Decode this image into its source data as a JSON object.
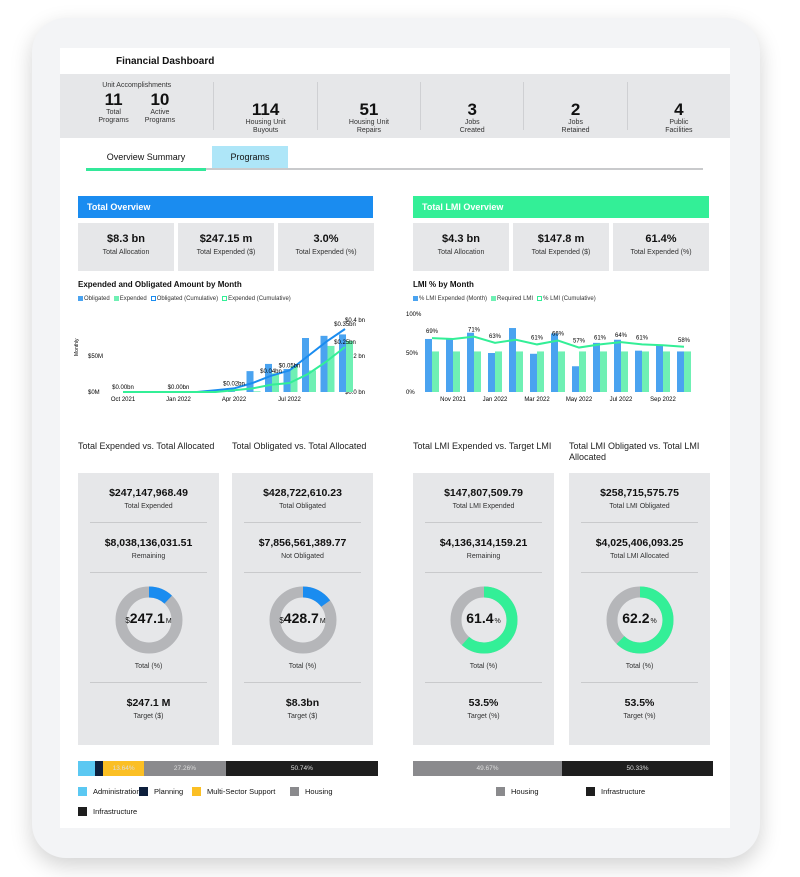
{
  "title": "Financial Dashboard",
  "kpis": {
    "group_label": "Unit Accomplishments",
    "items": [
      {
        "value": "11",
        "label1": "Total",
        "label2": "Programs"
      },
      {
        "value": "10",
        "label1": "Active",
        "label2": "Programs"
      },
      {
        "value": "114",
        "label1": "Housing Unit",
        "label2": "Buyouts"
      },
      {
        "value": "51",
        "label1": "Housing Unit",
        "label2": "Repairs"
      },
      {
        "value": "3",
        "label1": "Jobs",
        "label2": "Created"
      },
      {
        "value": "2",
        "label1": "Jobs",
        "label2": "Retained"
      },
      {
        "value": "4",
        "label1": "Public",
        "label2": "Facilities"
      }
    ]
  },
  "tabs": [
    {
      "label": "Overview Summary",
      "active": true
    },
    {
      "label": "Programs",
      "active": false
    }
  ],
  "colors": {
    "blue": "#1a8cf0",
    "green": "#33ef97",
    "bar_blue": "#4aa3f0",
    "bar_green": "#6ff0b4",
    "panel": "#e6e7e9"
  },
  "left": {
    "header": "Total Overview",
    "stats": [
      {
        "value": "$8.3 bn",
        "label": "Total Allocation"
      },
      {
        "value": "$247.15 m",
        "label": "Total Expended ($)"
      },
      {
        "value": "3.0%",
        "label": "Total Expended (%)"
      }
    ],
    "chart_title": "Expended and Obligated Amount by Month",
    "legend": [
      "Obligated",
      "Expended",
      "Obligated (Cumulative)",
      "Expended (Cumulative)"
    ]
  },
  "right": {
    "header": "Total LMI Overview",
    "stats": [
      {
        "value": "$4.3 bn",
        "label": "Total Allocation"
      },
      {
        "value": "$147.8 m",
        "label": "Total Expended ($)"
      },
      {
        "value": "61.4%",
        "label": "Total Expended (%)"
      }
    ],
    "chart_title": "LMI % by Month",
    "legend": [
      "% LMI Expended (Month)",
      "Required LMI",
      "% LMI (Cumulative)"
    ]
  },
  "chart_data": [
    {
      "type": "bar",
      "categories": [
        "Oct 2021",
        "Nov 2021",
        "Dec 2021",
        "Jan 2022",
        "Feb 2022",
        "Mar 2022",
        "Apr 2022",
        "May 2022",
        "Jun 2022",
        "Jul 2022",
        "Aug 2022",
        "Sep 2022",
        "Oct 2022"
      ],
      "tick_labels": [
        "Oct 2021",
        "Jan 2022",
        "Apr 2022",
        "Jul 2022"
      ],
      "ylabel": "Monthly",
      "y_ticks": [
        "$0M",
        "$50M"
      ],
      "ylim_musd": [
        0,
        100
      ],
      "y2_ticks": [
        "$0.0 bn",
        "$0.2 bn",
        "$0.4 bn"
      ],
      "y2lim_bn": [
        0,
        0.4
      ],
      "series": [
        {
          "name": "Obligated",
          "values": [
            0,
            0,
            0,
            0,
            0,
            0,
            1,
            29,
            39,
            32,
            75,
            78,
            80
          ]
        },
        {
          "name": "Expended",
          "values": [
            0,
            0,
            0,
            0,
            0,
            0,
            0,
            1,
            26,
            36,
            30,
            64,
            71
          ]
        },
        {
          "name": "Obligated (Cumulative)",
          "values": [
            0,
            0,
            0,
            0,
            0,
            0.01,
            0.02,
            0.05,
            0.09,
            0.12,
            0.2,
            0.28,
            0.35
          ]
        },
        {
          "name": "Expended (Cumulative)",
          "values": [
            0,
            0,
            0,
            0,
            0,
            0,
            0.01,
            0.02,
            0.04,
            0.05,
            0.1,
            0.17,
            0.25
          ]
        }
      ],
      "data_labels": [
        {
          "i": 0,
          "text": "$0.00bn"
        },
        {
          "i": 3,
          "text": "$0.00bn"
        },
        {
          "i": 6,
          "text": "$0.02bn"
        },
        {
          "i": 8,
          "text": "$0.04bn"
        },
        {
          "i": 9,
          "text": "$0.05bn"
        },
        {
          "i": 12,
          "text": "$0.35bn"
        },
        {
          "i": 12,
          "text": "$0.25bn"
        }
      ]
    },
    {
      "type": "bar",
      "categories": [
        "Oct 2021",
        "Nov 2021",
        "Dec 2021",
        "Jan 2022",
        "Feb 2022",
        "Mar 2022",
        "Apr 2022",
        "May 2022",
        "Jun 2022",
        "Jul 2022",
        "Aug 2022",
        "Sep 2022",
        "Oct 2022"
      ],
      "tick_labels": [
        "Nov 2021",
        "Jan 2022",
        "Mar 2022",
        "May 2022",
        "Jul 2022",
        "Sep 2022"
      ],
      "y_ticks": [
        "0%",
        "50%",
        "100%"
      ],
      "ylim": [
        0,
        100
      ],
      "series": [
        {
          "name": "% LMI Expended (Month)",
          "values": [
            68,
            68,
            76,
            50,
            82,
            49,
            75,
            33,
            63,
            67,
            53,
            60,
            52
          ]
        },
        {
          "name": "Required LMI",
          "values": [
            52,
            52,
            52,
            52,
            52,
            52,
            52,
            52,
            52,
            52,
            52,
            52,
            52
          ]
        },
        {
          "name": "% LMI (Cumulative)",
          "values": [
            69,
            68,
            71,
            63,
            67,
            61,
            66,
            57,
            61,
            64,
            61,
            60,
            58
          ]
        }
      ],
      "data_labels": [
        {
          "i": 0,
          "text": "69%"
        },
        {
          "i": 2,
          "text": "71%"
        },
        {
          "i": 3,
          "text": "63%"
        },
        {
          "i": 5,
          "text": "61%"
        },
        {
          "i": 6,
          "text": "66%"
        },
        {
          "i": 7,
          "text": "57%"
        },
        {
          "i": 8,
          "text": "61%"
        },
        {
          "i": 9,
          "text": "64%"
        },
        {
          "i": 10,
          "text": "61%"
        },
        {
          "i": 12,
          "text": "58%"
        }
      ]
    }
  ],
  "panels": [
    {
      "title": "Total Expended vs. Total Allocated",
      "v1": "$247,147,968.49",
      "l1": "Total Expended",
      "v2": "$8,038,136,031.51",
      "l2": "Remaining",
      "donut_prefix": "$",
      "donut_value": "247.1",
      "donut_suffix": "M",
      "fill": 0.12,
      "color": "#1a8cf0",
      "l3": "Total (%)",
      "v4": "$247.1 M",
      "l4": "Target ($)"
    },
    {
      "title": "Total Obligated vs. Total Allocated",
      "v1": "$428,722,610.23",
      "l1": "Total Obligated",
      "v2": "$7,856,561,389.77",
      "l2": "Not Obligated",
      "donut_prefix": "$",
      "donut_value": "428.7",
      "donut_suffix": "M",
      "fill": 0.15,
      "color": "#1a8cf0",
      "l3": "Total (%)",
      "v4": "$8.3bn",
      "l4": "Target ($)"
    },
    {
      "title": "Total LMI Expended vs. Target LMI",
      "v1": "$147,807,509.79",
      "l1": "Total LMI Expended",
      "v2": "$4,136,314,159.21",
      "l2": "Remaining",
      "donut_prefix": "",
      "donut_value": "61.4",
      "donut_suffix": "%",
      "fill": 0.614,
      "color": "#33ef97",
      "l3": "Total (%)",
      "v4": "53.5%",
      "l4": "Target (%)"
    },
    {
      "title": "Total LMI Obligated vs. Total LMI Allocated",
      "v1": "$258,715,575.75",
      "l1": "Total LMI Obligated",
      "v2": "$4,025,406,093.25",
      "l2": "Total LMI Allocated",
      "donut_prefix": "",
      "donut_value": "62.2",
      "donut_suffix": "%",
      "fill": 0.622,
      "color": "#33ef97",
      "l3": "Total (%)",
      "v4": "53.5%",
      "l4": "Target (%)"
    }
  ],
  "stack_left": [
    {
      "name": "Administration",
      "pct": 5.5,
      "label": "",
      "color": "#5bc8f2"
    },
    {
      "name": "Planning",
      "pct": 2.9,
      "label": "",
      "color": "#0d1f3c"
    },
    {
      "name": "Multi-Sector Support",
      "pct": 13.64,
      "label": "13.64%",
      "color": "#fbbf24"
    },
    {
      "name": "Housing",
      "pct": 27.26,
      "label": "27.26%",
      "color": "#8a8a8d"
    },
    {
      "name": "Infrastructure",
      "pct": 50.74,
      "label": "50.74%",
      "color": "#1e1e1e"
    }
  ],
  "stack_right": [
    {
      "name": "Housing",
      "pct": 49.67,
      "label": "49.67%",
      "color": "#8a8a8d"
    },
    {
      "name": "Infrastructure",
      "pct": 50.33,
      "label": "50.33%",
      "color": "#1e1e1e"
    }
  ]
}
